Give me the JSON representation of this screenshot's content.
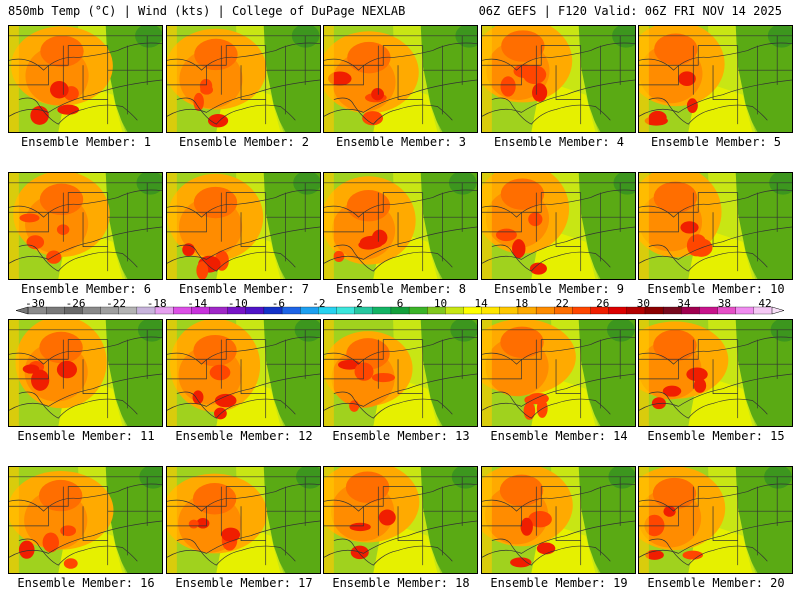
{
  "header": {
    "left": "850mb Temp (°C) | Wind (kts) | College of DuPage NEXLAB",
    "right": "06Z GEFS | F120 Valid: 06Z FRI NOV 14 2025"
  },
  "label_prefix": "Ensemble Member: ",
  "members": [
    1,
    2,
    3,
    4,
    5,
    6,
    7,
    8,
    9,
    10,
    11,
    12,
    13,
    14,
    15,
    16,
    17,
    18,
    19,
    20
  ],
  "colorbar": {
    "labels": [
      "-30",
      "-26",
      "-22",
      "-18",
      "-14",
      "-10",
      "-6",
      "-2",
      "2",
      "6",
      "10",
      "14",
      "18",
      "22",
      "26",
      "30",
      "34",
      "38",
      "42"
    ],
    "colors": [
      "#8c8c8c",
      "#7a7a7a",
      "#6a6a6a",
      "#8a8a8a",
      "#a0a0a0",
      "#b4b4b4",
      "#c8b4dc",
      "#e6a0f0",
      "#dc50e6",
      "#c832dc",
      "#a028c8",
      "#7814c8",
      "#5014c8",
      "#1432c8",
      "#1e64e6",
      "#1ea0f0",
      "#28d2f0",
      "#3ce6dc",
      "#28c8a0",
      "#14b464",
      "#14a03c",
      "#3cb428",
      "#82c81e",
      "#c8e614",
      "#ffff00",
      "#ffe600",
      "#ffc800",
      "#ffaa00",
      "#ff8c00",
      "#ff6e00",
      "#ff4600",
      "#f01e00",
      "#dc0000",
      "#b40000",
      "#8c0000",
      "#780a1e",
      "#a00050",
      "#c8148c",
      "#e650c8",
      "#f08cf0",
      "#f5c8f5"
    ]
  },
  "style": {
    "east_green": "#5aaa14",
    "mid_yellow": "#c8e614",
    "warm_orange": "#ff8c00",
    "hot_red": "#ff4600"
  }
}
